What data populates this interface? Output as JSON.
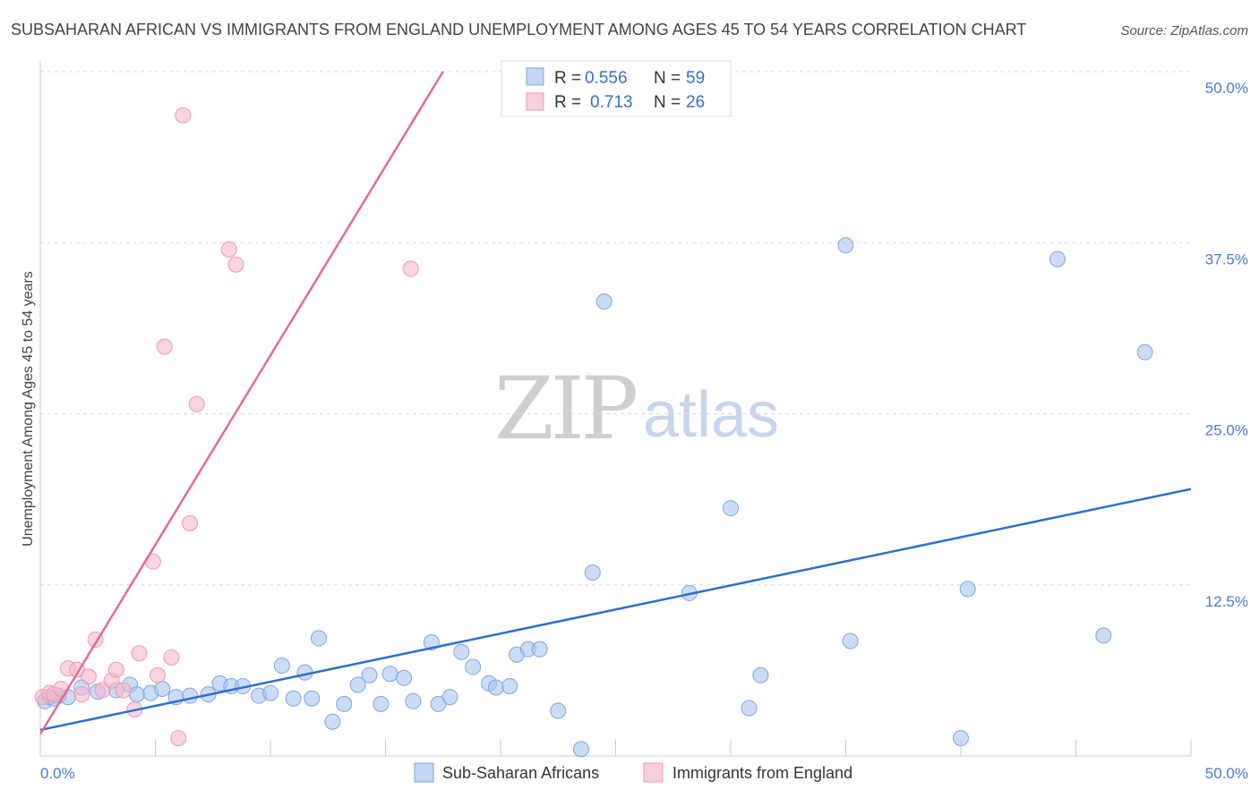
{
  "chart_data": {
    "type": "scatter",
    "title": "SUBSAHARAN AFRICAN VS IMMIGRANTS FROM ENGLAND UNEMPLOYMENT AMONG AGES 45 TO 54 YEARS CORRELATION CHART",
    "source": "Source: ZipAtlas.com",
    "ylabel": "Unemployment Among Ages 45 to 54 years",
    "xlabel": "",
    "xlim": [
      0,
      50
    ],
    "ylim": [
      0,
      50
    ],
    "x_tick_labels": [
      "0.0%",
      "50.0%"
    ],
    "y_tick_labels": [
      "12.5%",
      "25.0%",
      "37.5%",
      "50.0%"
    ],
    "y_ticks": [
      12.5,
      25.0,
      37.5,
      50.0
    ],
    "grid": true,
    "watermark": {
      "zip": "ZIP",
      "atlas": "atlas"
    },
    "legend": {
      "placement": "top-center",
      "entries": [
        {
          "r_label": "R =",
          "r_value": "0.556",
          "n_label": "N =",
          "n_value": "59"
        },
        {
          "r_label": "R =",
          "r_value": "0.713",
          "n_label": "N =",
          "n_value": "26"
        }
      ]
    },
    "series": [
      {
        "name": "Sub-Saharan Africans",
        "color": "#a9c6ef",
        "line_color": "#2f6fcc",
        "trend": [
          [
            0,
            1.9
          ],
          [
            50,
            19.5
          ]
        ],
        "points": [
          [
            0.2,
            4.0
          ],
          [
            0.4,
            4.3
          ],
          [
            0.8,
            4.4
          ],
          [
            1.2,
            4.3
          ],
          [
            1.8,
            5.0
          ],
          [
            2.5,
            4.7
          ],
          [
            3.3,
            4.8
          ],
          [
            3.9,
            5.2
          ],
          [
            4.2,
            4.5
          ],
          [
            4.8,
            4.6
          ],
          [
            5.3,
            4.9
          ],
          [
            5.9,
            4.3
          ],
          [
            6.5,
            4.4
          ],
          [
            7.3,
            4.5
          ],
          [
            7.8,
            5.3
          ],
          [
            8.3,
            5.1
          ],
          [
            8.8,
            5.1
          ],
          [
            9.5,
            4.4
          ],
          [
            10.0,
            4.6
          ],
          [
            10.5,
            6.6
          ],
          [
            11.0,
            4.2
          ],
          [
            11.5,
            6.1
          ],
          [
            11.8,
            4.2
          ],
          [
            12.1,
            8.6
          ],
          [
            12.7,
            2.5
          ],
          [
            13.2,
            3.8
          ],
          [
            13.8,
            5.2
          ],
          [
            14.3,
            5.9
          ],
          [
            14.8,
            3.8
          ],
          [
            15.2,
            6.0
          ],
          [
            15.8,
            5.7
          ],
          [
            16.2,
            4.0
          ],
          [
            17.0,
            8.3
          ],
          [
            17.3,
            3.8
          ],
          [
            17.8,
            4.3
          ],
          [
            18.3,
            7.6
          ],
          [
            18.8,
            6.5
          ],
          [
            19.5,
            5.3
          ],
          [
            19.8,
            5.0
          ],
          [
            20.4,
            5.1
          ],
          [
            20.7,
            7.4
          ],
          [
            21.2,
            7.8
          ],
          [
            21.7,
            7.8
          ],
          [
            22.5,
            3.3
          ],
          [
            23.5,
            0.5
          ],
          [
            24.0,
            13.4
          ],
          [
            24.5,
            33.2
          ],
          [
            28.2,
            11.9
          ],
          [
            30.0,
            18.1
          ],
          [
            30.8,
            3.5
          ],
          [
            31.3,
            5.9
          ],
          [
            35.0,
            37.3
          ],
          [
            35.2,
            8.4
          ],
          [
            40.0,
            1.3
          ],
          [
            40.3,
            12.2
          ],
          [
            44.2,
            36.3
          ],
          [
            46.2,
            8.8
          ],
          [
            48.0,
            29.5
          ],
          [
            0.6,
            4.2
          ]
        ]
      },
      {
        "name": "Immigrants from England",
        "color": "#f6b8c9",
        "line_color": "#e46a93",
        "trend": [
          [
            0,
            1.6
          ],
          [
            17.5,
            50
          ]
        ],
        "points": [
          [
            0.1,
            4.3
          ],
          [
            0.4,
            4.6
          ],
          [
            0.6,
            4.5
          ],
          [
            0.9,
            4.9
          ],
          [
            1.2,
            6.4
          ],
          [
            1.6,
            6.3
          ],
          [
            1.8,
            4.5
          ],
          [
            2.1,
            5.8
          ],
          [
            2.4,
            8.5
          ],
          [
            2.7,
            4.8
          ],
          [
            3.1,
            5.5
          ],
          [
            3.3,
            6.3
          ],
          [
            3.6,
            4.8
          ],
          [
            4.1,
            3.4
          ],
          [
            4.3,
            7.5
          ],
          [
            4.9,
            14.2
          ],
          [
            5.1,
            5.9
          ],
          [
            5.4,
            29.9
          ],
          [
            5.7,
            7.2
          ],
          [
            6.0,
            1.3
          ],
          [
            6.2,
            46.8
          ],
          [
            6.5,
            17.0
          ],
          [
            6.8,
            25.7
          ],
          [
            8.2,
            37.0
          ],
          [
            8.5,
            35.9
          ],
          [
            16.1,
            35.6
          ]
        ]
      }
    ]
  }
}
